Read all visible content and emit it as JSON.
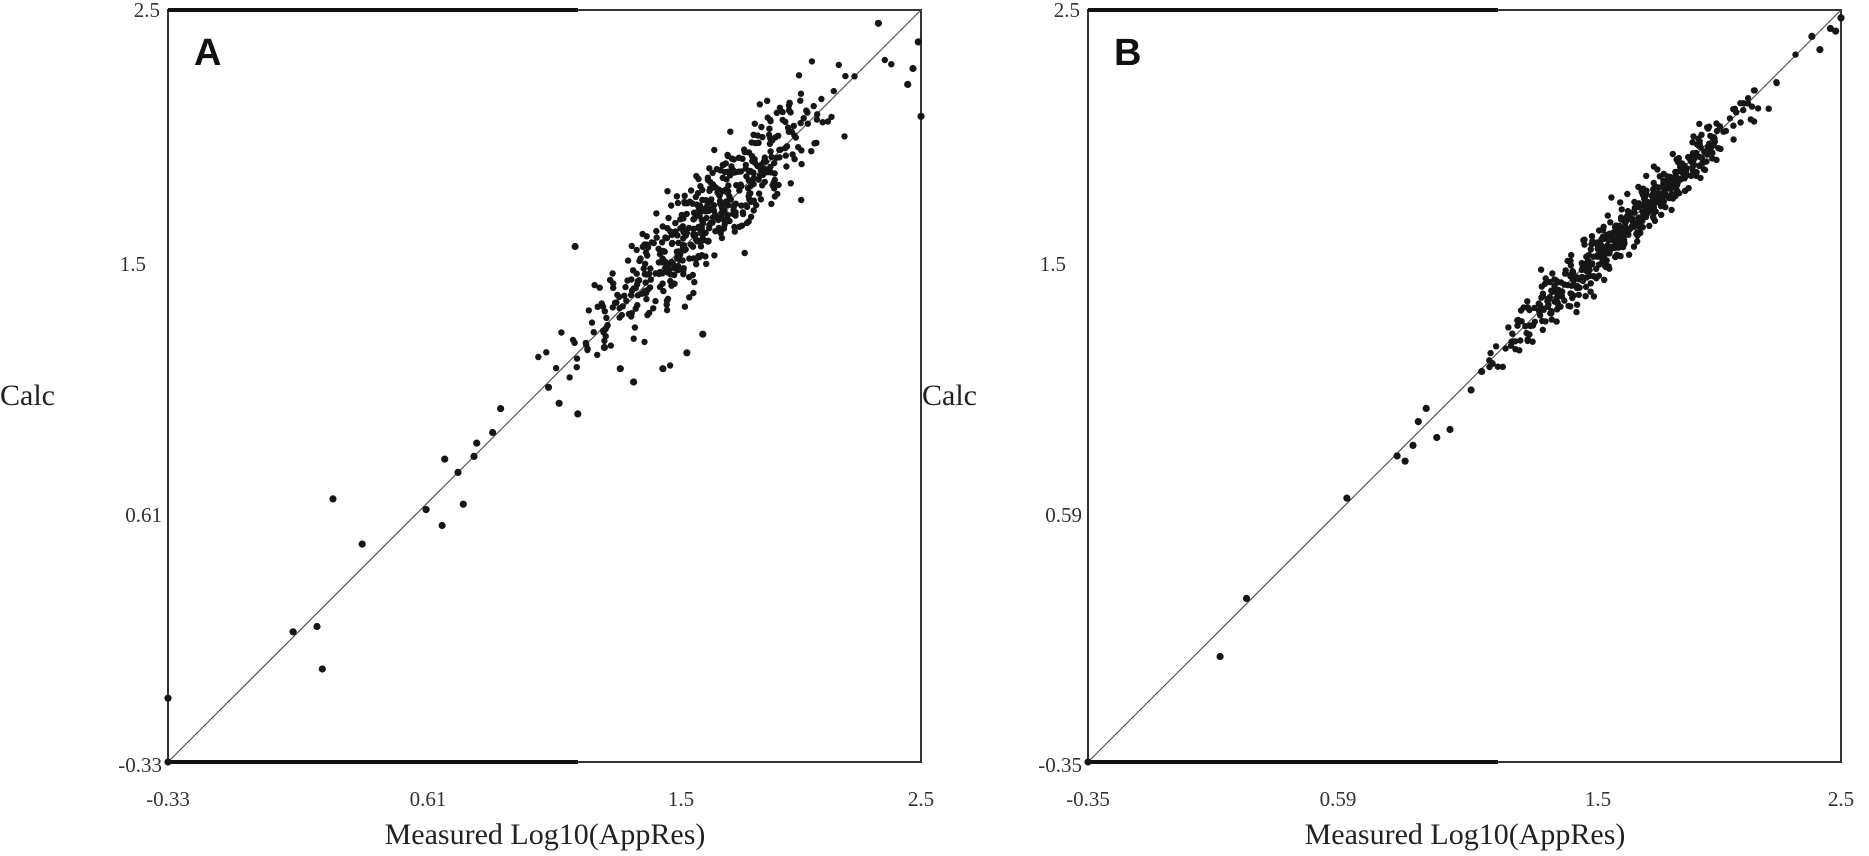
{
  "chart_data": [
    {
      "type": "scatter",
      "panel_label": "A",
      "xlabel": "Measured Log10(AppRes)",
      "ylabel": "Calc",
      "xlim": [
        -0.33,
        2.5
      ],
      "ylim": [
        -0.33,
        2.5
      ],
      "x_ticks": [
        "-0.33",
        "0.61",
        "1.5",
        "2.5"
      ],
      "y_ticks": [
        "-0.33",
        "0.61",
        "1.5",
        "2.5"
      ],
      "reference_line": "y = x",
      "grid": false,
      "outliers": [
        {
          "x": -0.33,
          "y": -0.33
        },
        {
          "x": -0.33,
          "y": -0.09
        },
        {
          "x": 0.14,
          "y": 0.16
        },
        {
          "x": 0.23,
          "y": 0.18
        },
        {
          "x": 0.25,
          "y": 0.02
        },
        {
          "x": 0.29,
          "y": 0.66
        },
        {
          "x": 0.4,
          "y": 0.49
        },
        {
          "x": 0.64,
          "y": 0.62
        },
        {
          "x": 0.7,
          "y": 0.56
        },
        {
          "x": 0.71,
          "y": 0.81
        },
        {
          "x": 0.78,
          "y": 0.64
        },
        {
          "x": 0.76,
          "y": 0.76
        },
        {
          "x": 0.82,
          "y": 0.82
        },
        {
          "x": 0.83,
          "y": 0.87
        },
        {
          "x": 0.89,
          "y": 0.91
        },
        {
          "x": 0.92,
          "y": 1.0
        },
        {
          "x": 1.1,
          "y": 1.08
        },
        {
          "x": 1.14,
          "y": 1.02
        },
        {
          "x": 1.21,
          "y": 0.98
        },
        {
          "x": 1.2,
          "y": 1.61
        },
        {
          "x": 1.31,
          "y": 1.23
        },
        {
          "x": 1.37,
          "y": 1.15
        },
        {
          "x": 1.42,
          "y": 1.1
        },
        {
          "x": 1.53,
          "y": 1.15
        },
        {
          "x": 1.62,
          "y": 1.21
        },
        {
          "x": 1.68,
          "y": 1.28
        },
        {
          "x": 1.7,
          "y": 1.63
        },
        {
          "x": 2.34,
          "y": 2.45
        },
        {
          "x": 2.45,
          "y": 2.22
        },
        {
          "x": 2.47,
          "y": 2.28
        },
        {
          "x": 2.5,
          "y": 2.1
        },
        {
          "x": 2.49,
          "y": 2.38
        }
      ],
      "cluster": {
        "x_range": [
          1.05,
          2.48
        ],
        "center": [
          1.7,
          1.72
        ],
        "along_spread": 0.32,
        "across_spread": 0.07,
        "n_points": 520
      }
    },
    {
      "type": "scatter",
      "panel_label": "B",
      "xlabel": "Measured Log10(AppRes)",
      "ylabel": "Calc",
      "xlim": [
        -0.35,
        2.5
      ],
      "ylim": [
        -0.35,
        2.5
      ],
      "x_ticks": [
        "-0.35",
        "0.59",
        "1.5",
        "2.5"
      ],
      "y_ticks": [
        "-0.35",
        "0.59",
        "1.5",
        "2.5"
      ],
      "reference_line": "y = x",
      "grid": false,
      "outliers": [
        {
          "x": -0.35,
          "y": -0.35
        },
        {
          "x": 0.15,
          "y": 0.05
        },
        {
          "x": 0.25,
          "y": 0.27
        },
        {
          "x": 0.63,
          "y": 0.65
        },
        {
          "x": 0.82,
          "y": 0.81
        },
        {
          "x": 0.85,
          "y": 0.79
        },
        {
          "x": 0.88,
          "y": 0.85
        },
        {
          "x": 0.9,
          "y": 0.94
        },
        {
          "x": 0.93,
          "y": 0.99
        },
        {
          "x": 0.97,
          "y": 0.88
        },
        {
          "x": 1.02,
          "y": 0.91
        },
        {
          "x": 1.1,
          "y": 1.06
        },
        {
          "x": 1.14,
          "y": 1.13
        },
        {
          "x": 1.18,
          "y": 1.16
        },
        {
          "x": 2.39,
          "y": 2.4
        },
        {
          "x": 2.42,
          "y": 2.35
        },
        {
          "x": 2.46,
          "y": 2.43
        },
        {
          "x": 2.5,
          "y": 2.47
        },
        {
          "x": 2.48,
          "y": 2.42
        }
      ],
      "cluster": {
        "x_range": [
          1.15,
          2.48
        ],
        "center": [
          1.68,
          1.67
        ],
        "along_spread": 0.34,
        "across_spread": 0.035,
        "n_points": 520
      }
    }
  ]
}
